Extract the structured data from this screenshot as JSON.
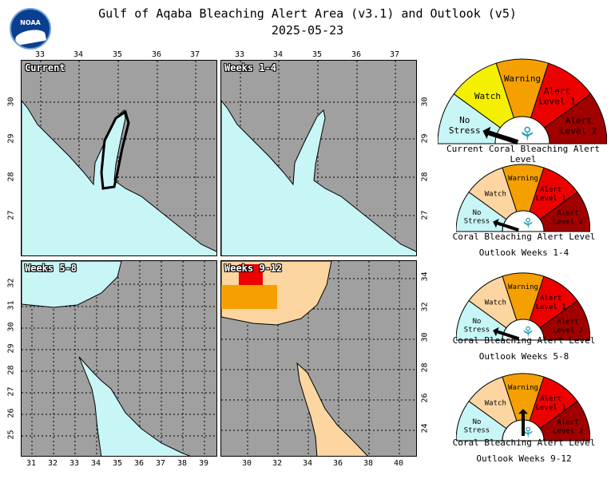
{
  "header": {
    "title": "Gulf of Aqaba Bleaching Alert Area (v3.1) and Outlook (v5)",
    "date": "2025-05-23",
    "logo_text": "NOAA"
  },
  "panels": [
    {
      "label": "Current"
    },
    {
      "label": "Weeks 1-4"
    },
    {
      "label": "Weeks 5-8"
    },
    {
      "label": "Weeks 9-12"
    }
  ],
  "axes": {
    "top_lon_ticks": [
      "33",
      "34",
      "35",
      "36",
      "37"
    ],
    "top_right_lon_ticks": [
      "33",
      "34",
      "35",
      "36",
      "37"
    ],
    "left_lat_ticks_top": [
      "30",
      "29",
      "28",
      "27"
    ],
    "right_lat_ticks_top": [
      "30",
      "29",
      "28",
      "27"
    ],
    "left_lat_ticks_bottom": [
      "32",
      "31",
      "30",
      "29",
      "28",
      "27",
      "26",
      "25"
    ],
    "right_lat_ticks_bottom": [
      "34",
      "32",
      "30",
      "28",
      "26",
      "24"
    ],
    "bottom_lon_ticks_left": [
      "31",
      "32",
      "33",
      "34",
      "35",
      "36",
      "37",
      "38",
      "39"
    ],
    "bottom_lon_ticks_right": [
      "30",
      "32",
      "34",
      "36",
      "38",
      "40"
    ]
  },
  "gauge_labels": {
    "no_stress": [
      "No",
      "Stress"
    ],
    "watch": "Watch",
    "warning": "Warning",
    "alert1": [
      "Alert",
      "Level 1"
    ],
    "alert2": [
      "Alert",
      "Level 2"
    ]
  },
  "gauges": [
    {
      "caption": "Current Coral Bleaching Alert Level",
      "caption2": "",
      "pointer_level": "No Stress",
      "watch_color": "#f5f000"
    },
    {
      "caption": "Coral Bleaching Alert Level",
      "caption2": "Outlook Weeks 1-4",
      "pointer_level": "No Stress",
      "watch_color": "#fdd5a0"
    },
    {
      "caption": "Coral Bleaching Alert Level",
      "caption2": "Outlook Weeks 5-8",
      "pointer_level": "No Stress",
      "watch_color": "#fdd5a0"
    },
    {
      "caption": "Coral Bleaching Alert Level",
      "caption2": "Outlook Weeks 9-12",
      "pointer_level": "Warning",
      "watch_color": "#fdd5a0"
    }
  ],
  "colors": {
    "land": "#a0a0a0",
    "no_stress": "#c8f5f5",
    "watch_outlook": "#fdd5a0",
    "warning": "#f5a000",
    "alert1": "#ee0000",
    "alert2": "#a00000"
  }
}
